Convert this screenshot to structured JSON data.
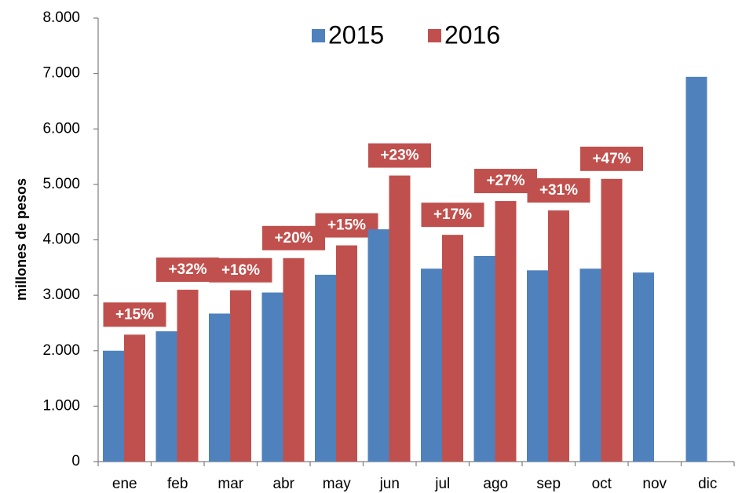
{
  "chart_data": {
    "type": "bar",
    "ylabel": "millones de pesos",
    "categories": [
      "ene",
      "feb",
      "mar",
      "abr",
      "may",
      "jun",
      "jul",
      "ago",
      "sep",
      "oct",
      "nov",
      "dic"
    ],
    "series": [
      {
        "name": "2015",
        "color": "#4f81bd",
        "values": [
          2000,
          2350,
          2670,
          3050,
          3370,
          4190,
          3480,
          3710,
          3450,
          3480,
          3410,
          6940
        ]
      },
      {
        "name": "2016",
        "color": "#c0504d",
        "values": [
          2290,
          3100,
          3090,
          3670,
          3900,
          5160,
          4090,
          4700,
          4530,
          5100,
          null,
          null
        ]
      }
    ],
    "annotations": [
      "+15%",
      "+32%",
      "+16%",
      "+20%",
      "+15%",
      "+23%",
      "+17%",
      "+27%",
      "+31%",
      "+47%",
      null,
      null
    ],
    "ylim": [
      0,
      8000
    ],
    "yticks": [
      0,
      {
        "value": 1000,
        "label": "1.000"
      },
      {
        "value": 2000,
        "label": "2.000"
      },
      {
        "value": 3000,
        "label": "3.000"
      },
      {
        "value": 4000,
        "label": "4.000"
      },
      {
        "value": 5000,
        "label": "5.000"
      },
      {
        "value": 6000,
        "label": "6.000"
      },
      {
        "value": 7000,
        "label": "7.000"
      },
      {
        "value": 8000,
        "label": "8.000"
      }
    ],
    "grid": false,
    "legend": "top"
  }
}
